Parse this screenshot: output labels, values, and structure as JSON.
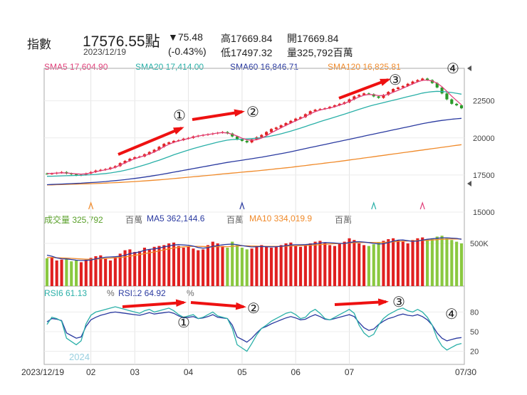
{
  "header": {
    "index_label": "指數",
    "price": "17576.55點",
    "date": "2023/12/19",
    "change": "▼75.48",
    "change_pct": "(-0.43%)",
    "high": "高17669.84",
    "low": "低17497.32",
    "open": "開17669.84",
    "volume": "量325,792百萬"
  },
  "legends": {
    "sma5": "SMA5 17,604.90",
    "sma20": "SMA20 17,414.00",
    "sma60": "SMA60 16,846.71",
    "sma120": "SMA120 16,825.81",
    "vol": "成交量 325,792",
    "vol_unit": "百萬",
    "ma5": "MA5 362,144.6",
    "ma5_unit": "百萬",
    "ma10": "MA10 334,019.9",
    "ma10_unit": "百萬",
    "rsi6": "RSI6 61.13",
    "rsi6_unit": "%",
    "rsi12": "RSI12 64.92",
    "rsi12_unit": "%",
    "year_label": "2024"
  },
  "colors": {
    "sma5": "#e0407a",
    "sma20": "#2ab0a8",
    "sma60": "#2a3aa0",
    "sma120": "#f08a2a",
    "up": "#e02020",
    "down": "#2a9a2a",
    "vol_up": "#e02020",
    "vol_down": "#8ac840",
    "arrow": "#ee1111"
  },
  "chart_data": [
    {
      "type": "candlestick",
      "panel": "price",
      "yticks": [
        15000,
        17500,
        20000,
        22500
      ],
      "ylim": [
        15000,
        24500
      ],
      "xticks": [
        "2023/12/19",
        "02",
        "03",
        "04",
        "05",
        "06",
        "07",
        "07/30"
      ],
      "close": [
        17576,
        17600,
        17650,
        17700,
        17600,
        17550,
        17480,
        17520,
        17600,
        17700,
        17800,
        17850,
        17900,
        18000,
        18100,
        18300,
        18450,
        18600,
        18700,
        18750,
        18900,
        19050,
        19200,
        19400,
        19600,
        19700,
        19800,
        19850,
        19950,
        20000,
        20100,
        20150,
        20200,
        20250,
        20300,
        20350,
        20400,
        20300,
        20100,
        19900,
        19800,
        19700,
        19900,
        20050,
        20200,
        20400,
        20600,
        20700,
        20850,
        21000,
        21150,
        21300,
        21400,
        21600,
        21800,
        21900,
        21950,
        22000,
        22100,
        22200,
        22300,
        22400,
        22600,
        22800,
        22900,
        23000,
        22950,
        22800,
        22700,
        22900,
        23100,
        23300,
        23400,
        23500,
        23650,
        23800,
        23900,
        24000,
        23900,
        23700,
        23400,
        23000,
        22600,
        22300,
        22200,
        22000
      ],
      "sma5": [
        17605,
        17610,
        17630,
        17650,
        17640,
        17610,
        17580,
        17560,
        17580,
        17640,
        17720,
        17790,
        17850,
        17920,
        18020,
        18170,
        18320,
        18470,
        18600,
        18700,
        18800,
        18920,
        19050,
        19220,
        19420,
        19570,
        19700,
        19800,
        19880,
        19950,
        20050,
        20120,
        20180,
        20230,
        20280,
        20330,
        20360,
        20330,
        20250,
        20130,
        19980,
        19870,
        19840,
        19880,
        19990,
        20150,
        20350,
        20520,
        20680,
        20850,
        21000,
        21150,
        21300,
        21450,
        21630,
        21770,
        21880,
        21950,
        22020,
        22100,
        22210,
        22320,
        22460,
        22620,
        22760,
        22880,
        22930,
        22910,
        22850,
        22860,
        22940,
        23080,
        23210,
        23350,
        23500,
        23640,
        23780,
        23880,
        23900,
        23840,
        23690,
        23450,
        23140,
        22810,
        22520,
        22230
      ],
      "sma20": [
        17414,
        17420,
        17430,
        17440,
        17450,
        17460,
        17470,
        17480,
        17500,
        17520,
        17540,
        17570,
        17600,
        17640,
        17690,
        17750,
        17820,
        17900,
        17990,
        18080,
        18180,
        18280,
        18390,
        18500,
        18620,
        18740,
        18860,
        18970,
        19080,
        19180,
        19280,
        19370,
        19460,
        19550,
        19630,
        19710,
        19790,
        19850,
        19890,
        19910,
        19920,
        19930,
        19950,
        19980,
        20020,
        20070,
        20130,
        20200,
        20280,
        20370,
        20460,
        20560,
        20660,
        20770,
        20880,
        20990,
        21100,
        21200,
        21300,
        21400,
        21500,
        21600,
        21710,
        21820,
        21930,
        22030,
        22130,
        22220,
        22300,
        22380,
        22460,
        22540,
        22620,
        22700,
        22780,
        22860,
        22940,
        23020,
        23080,
        23120,
        23140,
        23130,
        23100,
        23060,
        23010,
        22950
      ],
      "sma60": [
        16847,
        16860,
        16875,
        16890,
        16905,
        16920,
        16935,
        16950,
        16970,
        16990,
        17010,
        17035,
        17060,
        17090,
        17120,
        17155,
        17190,
        17230,
        17270,
        17315,
        17360,
        17410,
        17460,
        17515,
        17570,
        17630,
        17690,
        17750,
        17810,
        17870,
        17930,
        17990,
        18050,
        18110,
        18170,
        18230,
        18290,
        18350,
        18400,
        18450,
        18500,
        18550,
        18600,
        18650,
        18700,
        18760,
        18820,
        18880,
        18940,
        19000,
        19070,
        19140,
        19210,
        19280,
        19350,
        19420,
        19490,
        19560,
        19630,
        19700,
        19770,
        19840,
        19910,
        19980,
        20050,
        20120,
        20190,
        20260,
        20330,
        20400,
        20470,
        20540,
        20610,
        20680,
        20750,
        20820,
        20890,
        20960,
        21020,
        21080,
        21130,
        21180,
        21220,
        21260,
        21290,
        21320
      ],
      "sma120": [
        16826,
        16835,
        16845,
        16855,
        16865,
        16875,
        16885,
        16895,
        16905,
        16915,
        16925,
        16940,
        16955,
        16970,
        16985,
        17000,
        17020,
        17040,
        17060,
        17080,
        17100,
        17125,
        17150,
        17175,
        17200,
        17230,
        17260,
        17290,
        17320,
        17350,
        17380,
        17410,
        17440,
        17470,
        17500,
        17535,
        17570,
        17600,
        17630,
        17660,
        17690,
        17720,
        17750,
        17780,
        17810,
        17845,
        17880,
        17915,
        17950,
        17985,
        18020,
        18060,
        18100,
        18140,
        18180,
        18220,
        18260,
        18300,
        18340,
        18380,
        18420,
        18465,
        18510,
        18555,
        18600,
        18645,
        18690,
        18735,
        18780,
        18825,
        18870,
        18915,
        18960,
        19005,
        19050,
        19095,
        19140,
        19185,
        19230,
        19275,
        19320,
        19365,
        19410,
        19455,
        19500,
        19545
      ]
    },
    {
      "type": "bar",
      "panel": "volume",
      "yticks": [
        500000
      ],
      "ylim": [
        0,
        700000
      ],
      "volume": [
        325792,
        340000,
        300000,
        310000,
        320000,
        290000,
        300000,
        280000,
        310000,
        330000,
        350000,
        360000,
        320000,
        300000,
        340000,
        380000,
        420000,
        430000,
        400000,
        410000,
        450000,
        430000,
        460000,
        470000,
        480000,
        500000,
        510000,
        470000,
        450000,
        460000,
        440000,
        420000,
        430000,
        480000,
        520000,
        500000,
        470000,
        450000,
        520000,
        480000,
        450000,
        430000,
        440000,
        470000,
        480000,
        460000,
        450000,
        470000,
        480000,
        500000,
        510000,
        470000,
        460000,
        480000,
        500000,
        520000,
        530000,
        510000,
        480000,
        470000,
        500000,
        520000,
        560000,
        540000,
        500000,
        480000,
        470000,
        490000,
        510000,
        530000,
        550000,
        560000,
        540000,
        520000,
        500000,
        540000,
        560000,
        570000,
        550000,
        560000,
        580000,
        590000,
        560000,
        540000,
        520000,
        500000
      ],
      "ma5": [
        362145,
        350000,
        330000,
        320000,
        318000,
        312000,
        304000,
        300000,
        302000,
        306000,
        318000,
        330000,
        338000,
        342000,
        344000,
        350000,
        362000,
        380000,
        390000,
        400000,
        420000,
        430000,
        436000,
        444000,
        460000,
        470000,
        482000,
        486000,
        482000,
        478000,
        468000,
        452000,
        444000,
        450000,
        466000,
        474000,
        484000,
        488000,
        492000,
        484000,
        474000,
        466000,
        458000,
        462000,
        464000,
        462000,
        460000,
        462000,
        466000,
        474000,
        482000,
        484000,
        484000,
        486000,
        490000,
        496000,
        504000,
        510000,
        508000,
        504000,
        500000,
        500000,
        510000,
        518000,
        520000,
        516000,
        510000,
        500000,
        494000,
        496000,
        510000,
        526000,
        538000,
        540000,
        532000,
        524000,
        528000,
        538000,
        548000,
        554000,
        560000,
        566000,
        566000,
        562000,
        558000,
        548000
      ],
      "ma10": [
        334020,
        334000,
        332000,
        330000,
        328000,
        325000,
        322000,
        318000,
        316000,
        314000,
        316000,
        320000,
        324000,
        328000,
        332000,
        336000,
        342000,
        350000,
        360000,
        370000,
        380000,
        390000,
        400000,
        412000,
        424000,
        436000,
        446000,
        454000,
        460000,
        464000,
        466000,
        466000,
        464000,
        462000,
        462000,
        462000,
        462000,
        462000,
        466000,
        470000,
        472000,
        472000,
        470000,
        468000,
        466000,
        466000,
        466000,
        466000,
        466000,
        468000,
        470000,
        472000,
        474000,
        476000,
        478000,
        482000,
        486000,
        490000,
        494000,
        496000,
        498000,
        500000,
        504000,
        508000,
        510000,
        512000,
        512000,
        512000,
        512000,
        512000,
        514000,
        518000,
        522000,
        526000,
        528000,
        530000,
        532000,
        534000,
        536000,
        540000,
        544000,
        548000,
        550000,
        552000,
        552000,
        552000
      ]
    },
    {
      "type": "line",
      "panel": "rsi",
      "yticks": [
        20,
        50,
        80
      ],
      "ylim": [
        0,
        100
      ],
      "rsi6": [
        61,
        72,
        70,
        66,
        40,
        35,
        30,
        36,
        62,
        75,
        80,
        82,
        84,
        86,
        88,
        86,
        84,
        82,
        80,
        78,
        82,
        84,
        80,
        82,
        84,
        86,
        82,
        76,
        72,
        74,
        76,
        70,
        72,
        76,
        80,
        74,
        72,
        70,
        55,
        30,
        25,
        20,
        32,
        45,
        55,
        60,
        66,
        70,
        74,
        78,
        80,
        76,
        70,
        72,
        80,
        84,
        78,
        70,
        68,
        72,
        76,
        80,
        84,
        78,
        60,
        48,
        42,
        46,
        60,
        70,
        76,
        80,
        84,
        86,
        82,
        80,
        84,
        80,
        72,
        60,
        40,
        28,
        22,
        26,
        30,
        32
      ],
      "rsi12": [
        65,
        70,
        69,
        67,
        48,
        44,
        40,
        42,
        58,
        68,
        72,
        75,
        77,
        79,
        80,
        79,
        78,
        77,
        76,
        75,
        77,
        79,
        77,
        78,
        79,
        80,
        78,
        74,
        71,
        72,
        73,
        70,
        71,
        73,
        76,
        72,
        71,
        70,
        60,
        42,
        38,
        34,
        40,
        48,
        55,
        58,
        62,
        65,
        68,
        71,
        73,
        71,
        68,
        69,
        73,
        76,
        73,
        69,
        68,
        70,
        72,
        74,
        76,
        73,
        64,
        56,
        52,
        54,
        61,
        66,
        70,
        72,
        75,
        77,
        75,
        74,
        76,
        73,
        68,
        60,
        48,
        40,
        36,
        38,
        40,
        41
      ]
    }
  ],
  "annotations": [
    "①",
    "②",
    "③",
    "④"
  ]
}
